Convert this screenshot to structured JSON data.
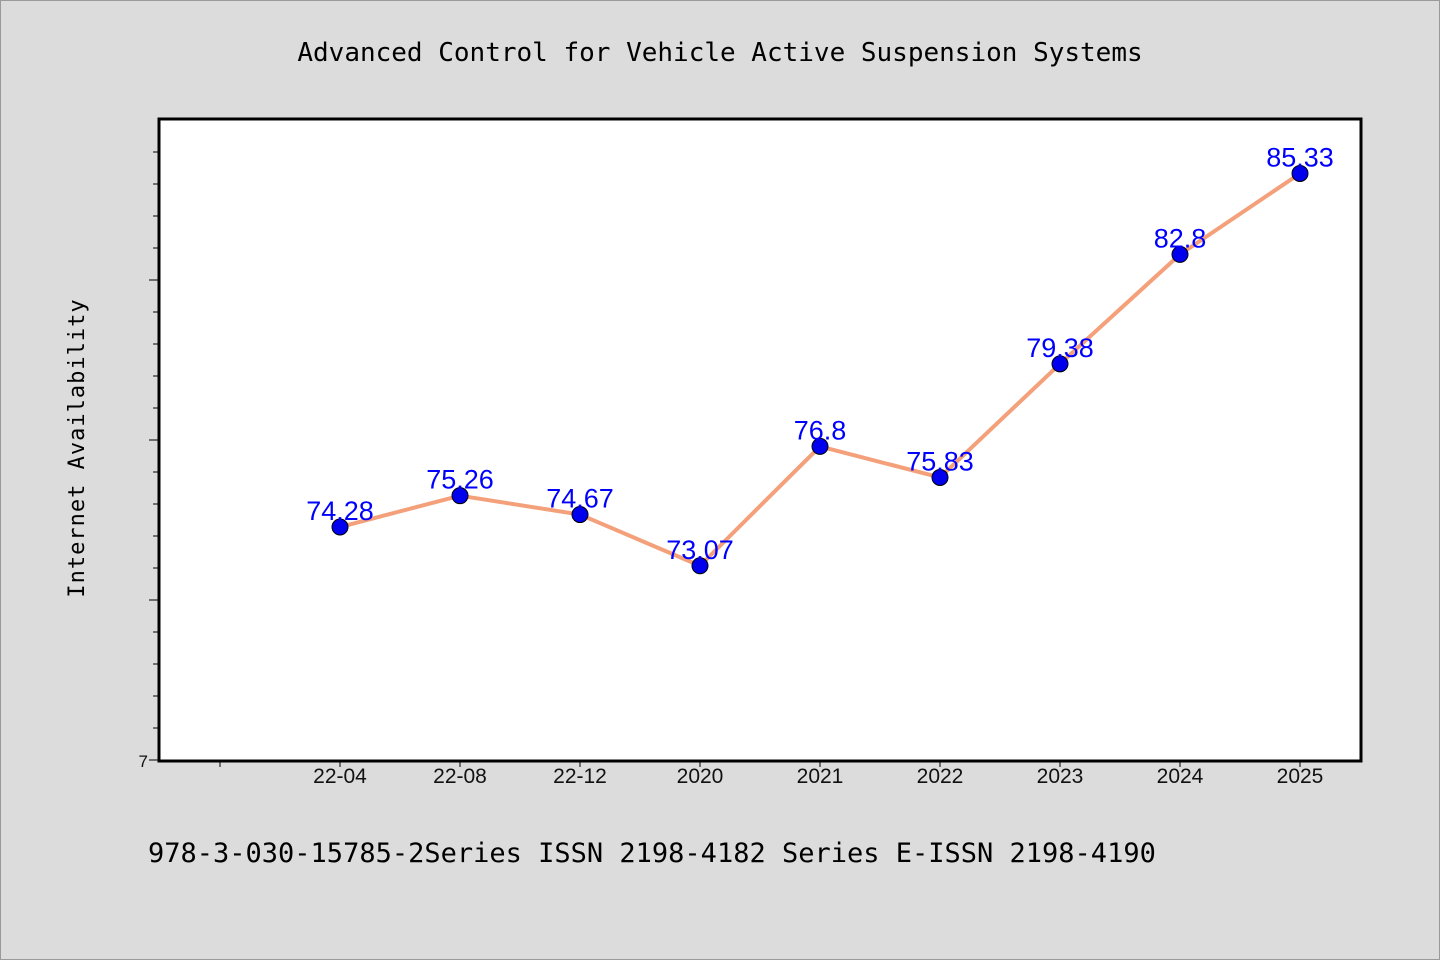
{
  "chart_data": {
    "type": "line",
    "title": "Advanced Control for Vehicle Active Suspension Systems",
    "xlabel": "",
    "ylabel": "Internet Availability",
    "categories": [
      "22-04",
      "22-08",
      "22-12",
      "2020",
      "2021",
      "2022",
      "2023",
      "2024",
      "2025"
    ],
    "series": [
      {
        "values": [
          74.28,
          75.26,
          74.67,
          73.07,
          76.8,
          75.83,
          79.38,
          82.8,
          85.33
        ],
        "labels": [
          "74.28",
          "75.26",
          "74.67",
          "73.07",
          "76.8",
          "75.83",
          "79.38",
          "82.8",
          "85.33"
        ],
        "line_color": "#f4a07a",
        "marker_color": "#0000ee",
        "label_color": "#0000ff"
      }
    ],
    "ylim": [
      67,
      87
    ],
    "y_tick_label": "7",
    "grid": false,
    "legend": "none"
  },
  "footer": {
    "text": "978-3-030-15785-2Series ISSN 2198-4182 Series E-ISSN 2198-4190"
  },
  "colors": {
    "background": "#dcdcdc",
    "plot_background": "#ffffff",
    "axis": "#000000"
  }
}
